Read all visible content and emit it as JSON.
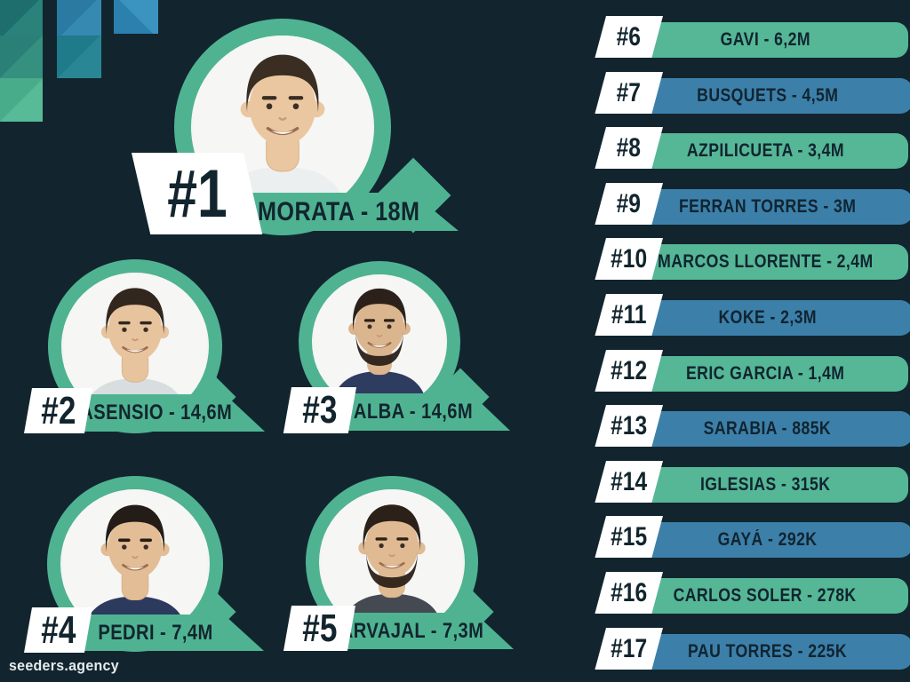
{
  "brand": {
    "footer_text": "seeders.agency"
  },
  "colors": {
    "background": "#12252e",
    "accent_green": "#4fb392",
    "bar_green": "#55b795",
    "bar_blue": "#3c80aa",
    "tag_white": "#ffffff",
    "text_dark": "#12252e"
  },
  "featured_players": [
    {
      "rank": "#1",
      "label": "A. MORATA - 18M"
    },
    {
      "rank": "#2",
      "label": "ASENSIO - 14,6M"
    },
    {
      "rank": "#3",
      "label": "J. ALBA - 14,6M"
    },
    {
      "rank": "#4",
      "label": "PEDRI - 7,4M"
    },
    {
      "rank": "#5",
      "label": "CARVAJAL - 7,3M"
    }
  ],
  "ranking_rows": [
    {
      "rank": "#6",
      "label": "GAVI - 6,2M",
      "bar_color": "green"
    },
    {
      "rank": "#7",
      "label": "BUSQUETS - 4,5M",
      "bar_color": "blue"
    },
    {
      "rank": "#8",
      "label": "AZPILICUETA - 3,4M",
      "bar_color": "green"
    },
    {
      "rank": "#9",
      "label": "FERRAN TORRES - 3M",
      "bar_color": "blue"
    },
    {
      "rank": "#10",
      "label": "MARCOS LLORENTE - 2,4M",
      "bar_color": "green"
    },
    {
      "rank": "#11",
      "label": "KOKE - 2,3M",
      "bar_color": "blue"
    },
    {
      "rank": "#12",
      "label": "ERIC GARCIA - 1,4M",
      "bar_color": "green"
    },
    {
      "rank": "#13",
      "label": "SARABIA - 885K",
      "bar_color": "blue"
    },
    {
      "rank": "#14",
      "label": "IGLESIAS - 315K",
      "bar_color": "green"
    },
    {
      "rank": "#15",
      "label": "GAYÁ - 292K",
      "bar_color": "blue"
    },
    {
      "rank": "#16",
      "label": "CARLOS SOLER - 278K",
      "bar_color": "green"
    },
    {
      "rank": "#17",
      "label": "PAU TORRES - 225K",
      "bar_color": "blue"
    }
  ],
  "chart_data": {
    "type": "bar",
    "title": "",
    "categories": [
      "A. Morata",
      "Asensio",
      "J. Alba",
      "Pedri",
      "Carvajal",
      "Gavi",
      "Busquets",
      "Azpilicueta",
      "Ferran Torres",
      "Marcos Llorente",
      "Koke",
      "Eric Garcia",
      "Sarabia",
      "Iglesias",
      "Gayá",
      "Carlos Soler",
      "Pau Torres"
    ],
    "ranks": [
      "#1",
      "#2",
      "#3",
      "#4",
      "#5",
      "#6",
      "#7",
      "#8",
      "#9",
      "#10",
      "#11",
      "#12",
      "#13",
      "#14",
      "#15",
      "#16",
      "#17"
    ],
    "values_millions": [
      18,
      14.6,
      14.6,
      7.4,
      7.3,
      6.2,
      4.5,
      3.4,
      3,
      2.4,
      2.3,
      1.4,
      0.885,
      0.315,
      0.292,
      0.278,
      0.225
    ],
    "value_labels": [
      "18M",
      "14,6M",
      "14,6M",
      "7,4M",
      "7,3M",
      "6,2M",
      "4,5M",
      "3,4M",
      "3M",
      "2,4M",
      "2,3M",
      "1,4M",
      "885K",
      "315K",
      "292K",
      "278K",
      "225K"
    ],
    "legend": [],
    "notes": "Ranking infographic; values shown inline next to each player name"
  }
}
